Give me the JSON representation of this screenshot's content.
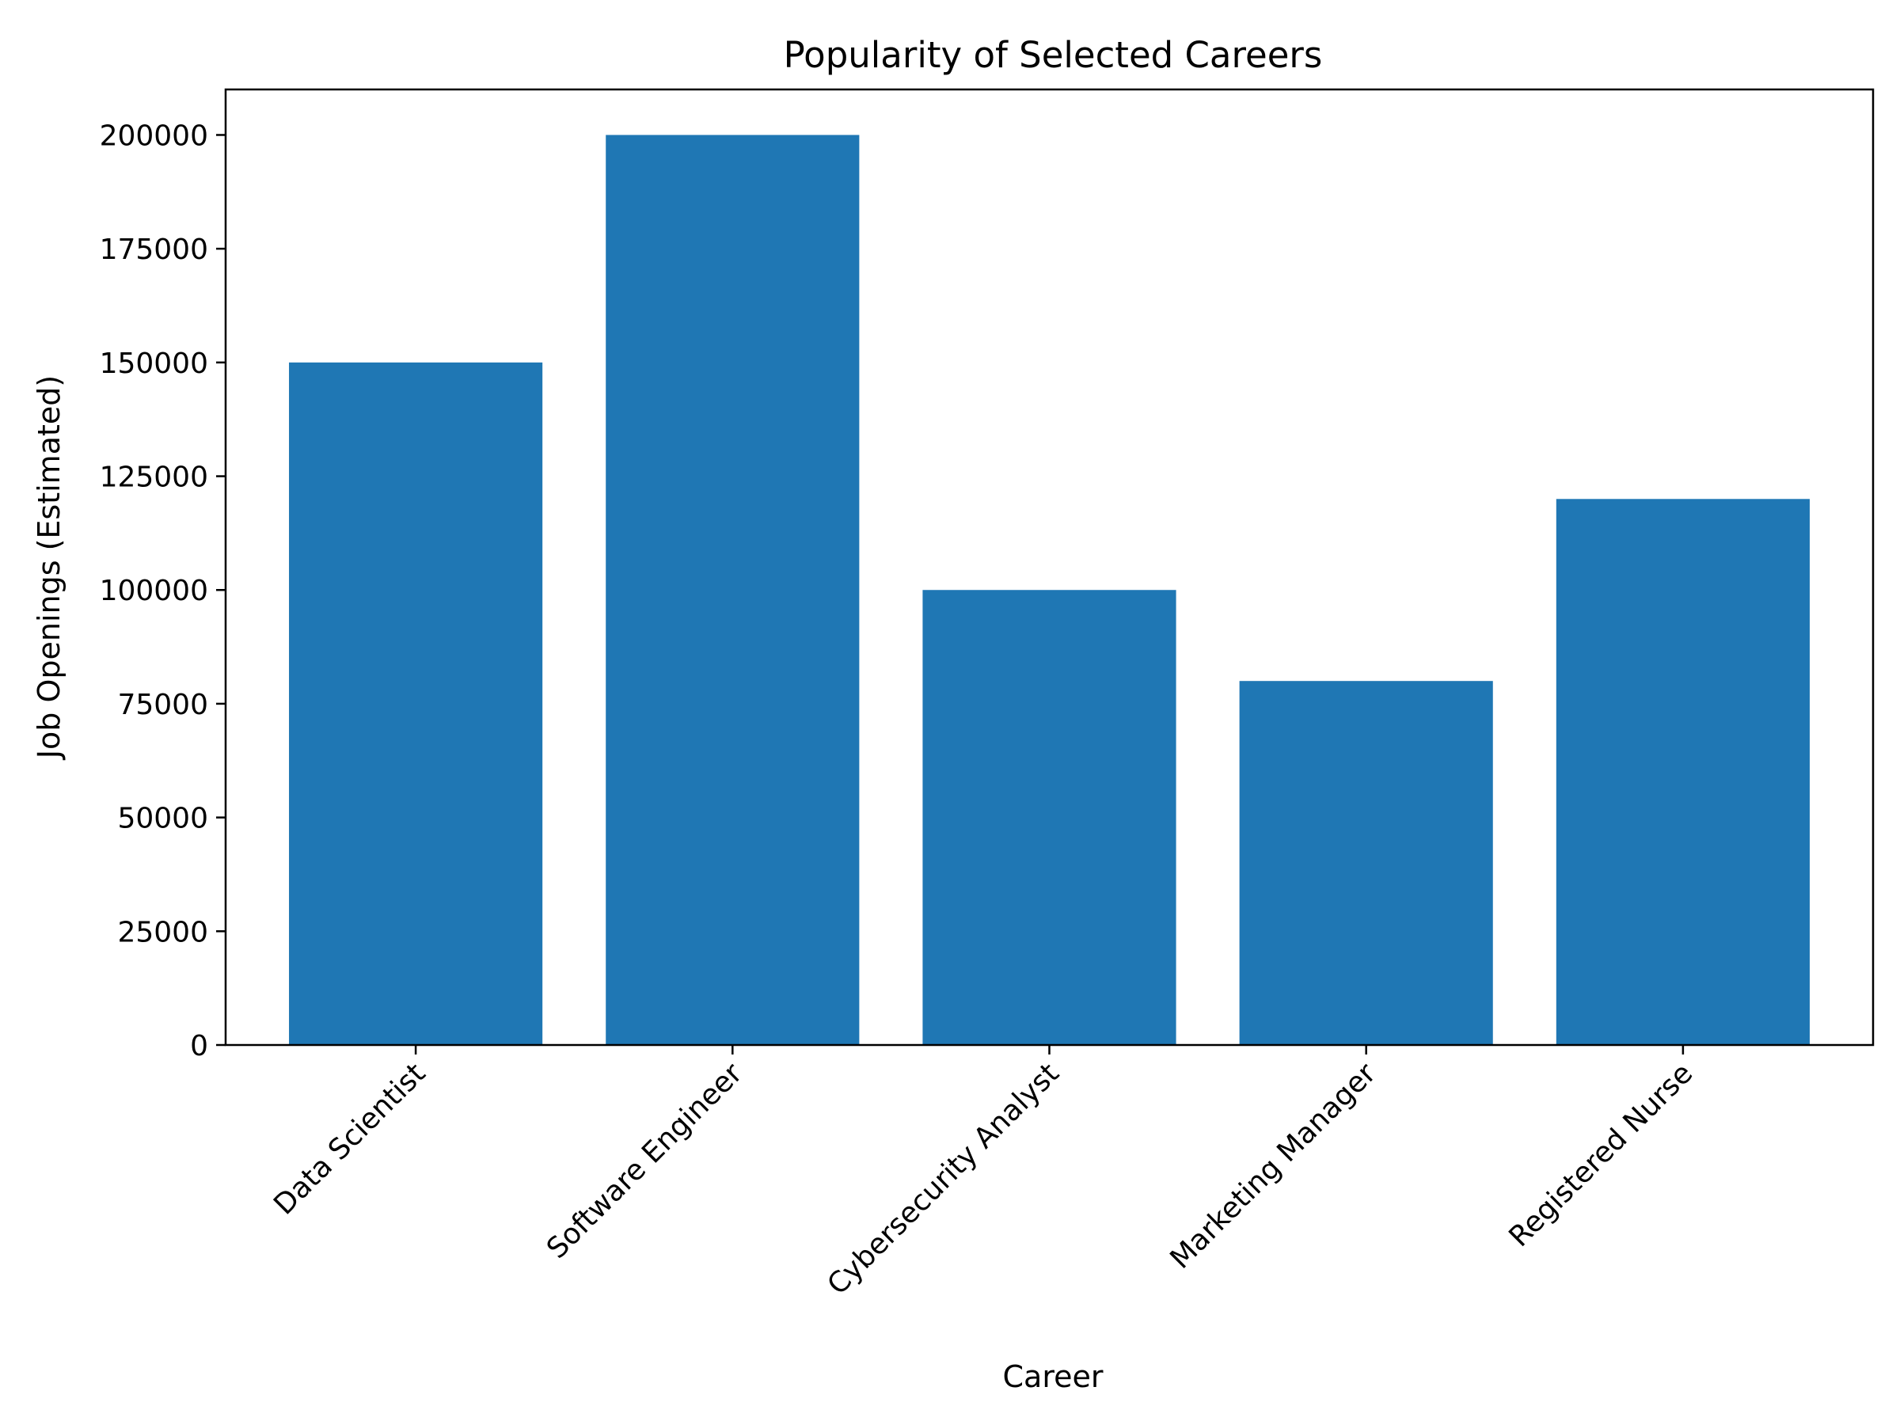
{
  "chart_data": {
    "type": "bar",
    "title": "Popularity of Selected Careers",
    "xlabel": "Career",
    "ylabel": "Job Openings (Estimated)",
    "categories": [
      "Data Scientist",
      "Software Engineer",
      "Cybersecurity Analyst",
      "Marketing Manager",
      "Registered Nurse"
    ],
    "values": [
      150000,
      200000,
      100000,
      80000,
      120000
    ],
    "ylim": [
      0,
      210000
    ],
    "yticks": [
      "0",
      "25000",
      "50000",
      "75000",
      "100000",
      "125000",
      "150000",
      "175000",
      "200000"
    ],
    "ytick_values": [
      0,
      25000,
      50000,
      75000,
      100000,
      125000,
      150000,
      175000,
      200000
    ],
    "grid": false,
    "legend": false,
    "bar_color": "#1f77b4"
  }
}
